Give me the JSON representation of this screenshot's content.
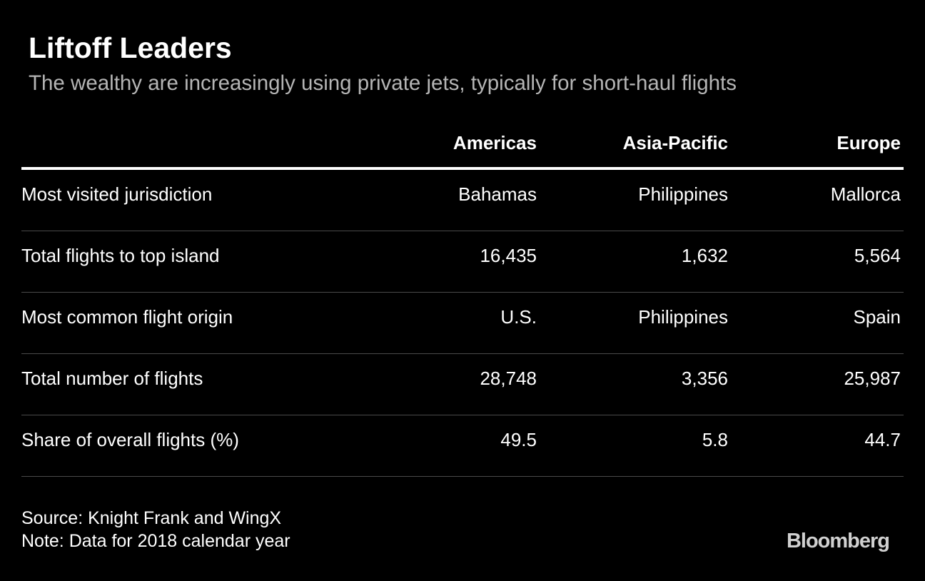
{
  "header": {
    "title": "Liftoff Leaders",
    "subtitle": "The wealthy are increasingly using private jets, typically for short-haul flights"
  },
  "table": {
    "columns": [
      "Americas",
      "Asia-Pacific",
      "Europe"
    ],
    "rows": [
      [
        "Most visited jurisdiction",
        "Bahamas",
        "Philippines",
        "Mallorca"
      ],
      [
        "Total flights to top island",
        "16,435",
        "1,632",
        "5,564"
      ],
      [
        "Most common flight origin",
        "U.S.",
        "Philippines",
        "Spain"
      ],
      [
        "Total number of flights",
        "28,748",
        "3,356",
        "25,987"
      ],
      [
        "Share of overall flights (%)",
        "49.5",
        "5.8",
        "44.7"
      ]
    ]
  },
  "footer": {
    "source": "Source: Knight Frank and WingX",
    "note": "Note: Data for 2018 calendar year",
    "logo": "Bloomberg"
  }
}
